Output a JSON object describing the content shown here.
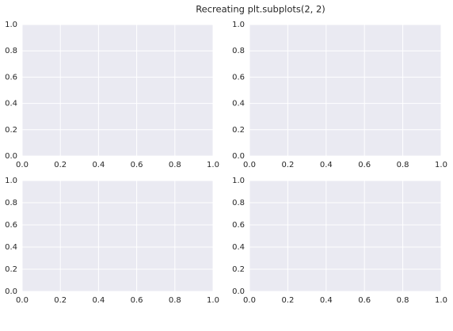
{
  "title": "Recreating plt.subplots(2, 2)",
  "chart_data": [
    {
      "type": "line",
      "xlim": [
        0,
        1
      ],
      "ylim": [
        0,
        1
      ],
      "grid": true,
      "background": "#eaeaf2",
      "grid_color": "#ffffff",
      "xticks": [
        {
          "value": 0,
          "label": "0.0"
        },
        0.2,
        0.4,
        0.6,
        0.8,
        {
          "value": 1,
          "label": "1.0"
        }
      ],
      "yticks": [
        {
          "value": 0,
          "label": "0.0"
        },
        0.2,
        0.4,
        0.6,
        0.8,
        {
          "value": 1,
          "label": "1.0"
        }
      ]
    },
    {
      "type": "line",
      "xlim": [
        0,
        1
      ],
      "ylim": [
        0,
        1
      ],
      "grid": true,
      "background": "#eaeaf2",
      "grid_color": "#ffffff",
      "xticks": [
        {
          "value": 0,
          "label": "0.0"
        },
        0.2,
        0.4,
        0.6,
        0.8,
        {
          "value": 1,
          "label": "1.0"
        }
      ],
      "yticks": [
        {
          "value": 0,
          "label": "0.0"
        },
        0.2,
        0.4,
        0.6,
        0.8,
        {
          "value": 1,
          "label": "1.0"
        }
      ]
    },
    {
      "type": "line",
      "xlim": [
        0,
        1
      ],
      "ylim": [
        0,
        1
      ],
      "grid": true,
      "background": "#eaeaf2",
      "grid_color": "#ffffff",
      "xticks": [
        {
          "value": 0,
          "label": "0.0"
        },
        0.2,
        0.4,
        0.6,
        0.8,
        {
          "value": 1,
          "label": "1.0"
        }
      ],
      "yticks": [
        {
          "value": 0,
          "label": "0.0"
        },
        0.2,
        0.4,
        0.6,
        0.8,
        {
          "value": 1,
          "label": "1.0"
        }
      ]
    },
    {
      "type": "line",
      "xlim": [
        0,
        1
      ],
      "ylim": [
        0,
        1
      ],
      "grid": true,
      "background": "#eaeaf2",
      "grid_color": "#ffffff",
      "xticks": [
        {
          "value": 0,
          "label": "0.0"
        },
        0.2,
        0.4,
        0.6,
        0.8,
        {
          "value": 1,
          "label": "1.0"
        }
      ],
      "yticks": [
        {
          "value": 0,
          "label": "0.0"
        },
        0.2,
        0.4,
        0.6,
        0.8,
        {
          "value": 1,
          "label": "1.0"
        }
      ]
    }
  ]
}
